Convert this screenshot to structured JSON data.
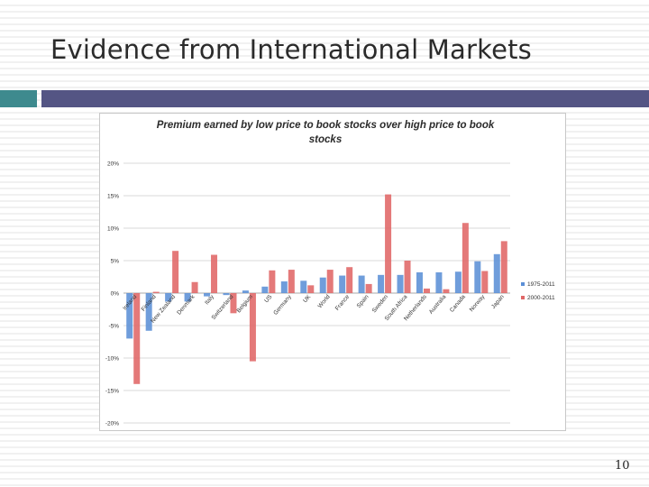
{
  "slide": {
    "title": "Evidence from International Markets",
    "page_number": "10"
  },
  "chart_data": {
    "type": "bar",
    "title": "Premium earned by low price to book stocks over high price to book stocks",
    "xlabel": "",
    "ylabel": "",
    "categories": [
      "Ireland",
      "Finland",
      "New Zealand",
      "Denmark",
      "Italy",
      "Switzerland",
      "Belgium",
      "US",
      "Germany",
      "UK",
      "World",
      "France",
      "Spain",
      "Sweden",
      "South Africa",
      "Netherlands",
      "Australia",
      "Canada",
      "Norway",
      "Japan"
    ],
    "series": [
      {
        "name": "1975-2011",
        "color": "#5b8fd6",
        "values": [
          -7.0,
          -5.8,
          -1.3,
          -1.3,
          -0.5,
          -0.3,
          0.4,
          1.0,
          1.8,
          1.9,
          2.4,
          2.7,
          2.7,
          2.8,
          2.8,
          3.2,
          3.2,
          3.3,
          4.9,
          6.0
        ]
      },
      {
        "name": "2000-2011",
        "color": "#e06767",
        "values": [
          -14.0,
          0.2,
          6.5,
          1.7,
          5.9,
          -3.1,
          -10.5,
          3.5,
          3.6,
          1.2,
          3.6,
          4.0,
          1.4,
          15.2,
          5.0,
          0.7,
          0.6,
          10.8,
          3.4,
          8.0
        ]
      }
    ],
    "ylim": [
      -20,
      20
    ],
    "yticks": [
      "20%",
      "15%",
      "10%",
      "5%",
      "0%",
      "-5%",
      "-10%",
      "-15%",
      "-20%"
    ],
    "ytick_values": [
      20,
      15,
      10,
      5,
      0,
      -5,
      -10,
      -15,
      -20
    ],
    "grid": true,
    "legend_position": "right"
  }
}
